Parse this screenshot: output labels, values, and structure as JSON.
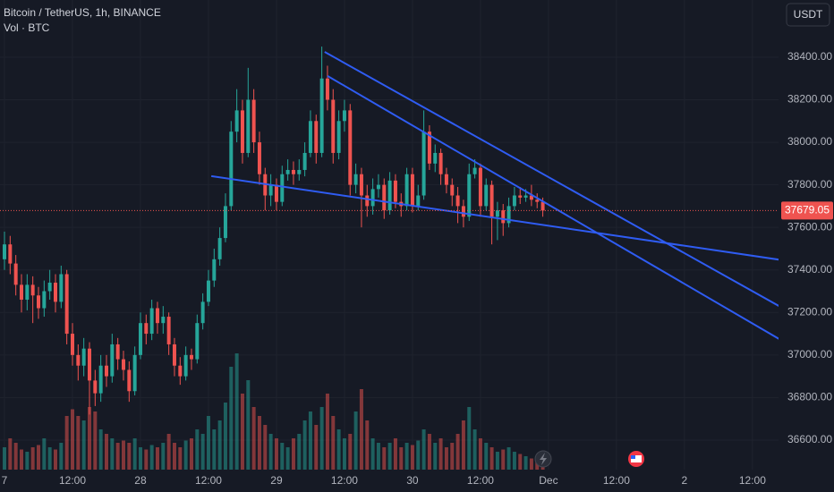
{
  "chart_data": {
    "type": "candlestick",
    "title": "Bitcoin / TetherUS, 1h, BINANCE",
    "subtitle": "Vol · BTC",
    "currency_button": "USDT",
    "up_color": "#26a69a",
    "down_color": "#ef5350",
    "line_color": "#2f5cf2",
    "grid": true,
    "xlim": [
      -0.79,
      136.6
    ],
    "ylim": [
      36461,
      38669
    ],
    "volume_ylim": [
      0,
      4000
    ],
    "xticks": [
      {
        "value": 0,
        "label": "7"
      },
      {
        "value": 12,
        "label": "12:00"
      },
      {
        "value": 24,
        "label": "28"
      },
      {
        "value": 36,
        "label": "12:00"
      },
      {
        "value": 48,
        "label": "29"
      },
      {
        "value": 60,
        "label": "12:00"
      },
      {
        "value": 72,
        "label": "30"
      },
      {
        "value": 84,
        "label": "12:00"
      },
      {
        "value": 96,
        "label": "Dec"
      },
      {
        "value": 108,
        "label": "12:00"
      },
      {
        "value": 120,
        "label": "2"
      },
      {
        "value": 132,
        "label": "12:00"
      }
    ],
    "yticks": [
      {
        "value": 38400,
        "label": "38400.00"
      },
      {
        "value": 38200,
        "label": "38200.00"
      },
      {
        "value": 38000,
        "label": "38000.00"
      },
      {
        "value": 37800,
        "label": "37800.00"
      },
      {
        "value": 37600,
        "label": "37600.00"
      },
      {
        "value": 37400,
        "label": "37400.00"
      },
      {
        "value": 37200,
        "label": "37200.00"
      },
      {
        "value": 37000,
        "label": "37000.00"
      },
      {
        "value": 36800,
        "label": "36800.00"
      },
      {
        "value": 36600,
        "label": "36600.00"
      }
    ],
    "x": [
      0,
      1,
      2,
      3,
      4,
      5,
      6,
      7,
      8,
      9,
      10,
      11,
      12,
      13,
      14,
      15,
      16,
      17,
      18,
      19,
      20,
      21,
      22,
      23,
      24,
      25,
      26,
      27,
      28,
      29,
      30,
      31,
      32,
      33,
      34,
      35,
      36,
      37,
      38,
      39,
      40,
      41,
      42,
      43,
      44,
      45,
      46,
      47,
      48,
      49,
      50,
      51,
      52,
      53,
      54,
      55,
      56,
      57,
      58,
      59,
      60,
      61,
      62,
      63,
      64,
      65,
      66,
      67,
      68,
      69,
      70,
      71,
      72,
      73,
      74,
      75,
      76,
      77,
      78,
      79,
      80,
      81,
      82,
      83,
      84,
      85,
      86,
      87,
      88,
      89,
      90,
      91,
      92,
      93,
      94,
      95
    ],
    "open": [
      37450,
      37520,
      37430,
      37330,
      37260,
      37330,
      37280,
      37220,
      37300,
      37340,
      37250,
      37380,
      37100,
      37000,
      36950,
      37030,
      36880,
      36820,
      36950,
      36900,
      37050,
      36980,
      36930,
      36830,
      37000,
      37150,
      37100,
      37220,
      37150,
      37180,
      37050,
      36950,
      36900,
      37000,
      36980,
      37150,
      37250,
      37350,
      37450,
      37550,
      37700,
      38050,
      38150,
      37950,
      38200,
      38000,
      37850,
      37750,
      37800,
      37720,
      37850,
      37870,
      37850,
      37870,
      37950,
      38100,
      37950,
      38300,
      38200,
      37950,
      38100,
      38150,
      37800,
      37850,
      37750,
      37700,
      37780,
      37800,
      37680,
      37820,
      37720,
      37700,
      37850,
      37700,
      37750,
      38050,
      37900,
      37950,
      37850,
      37800,
      37750,
      37700,
      37650,
      37850,
      37880,
      37700,
      37800,
      37650,
      37680,
      37620,
      37700,
      37750,
      37740,
      37750,
      37730,
      37720
    ],
    "high": [
      37580,
      37560,
      37470,
      37380,
      37380,
      37370,
      37320,
      37350,
      37400,
      37380,
      37420,
      37400,
      37150,
      37050,
      37080,
      37060,
      36930,
      37000,
      37000,
      37100,
      37080,
      37020,
      36970,
      37040,
      37200,
      37190,
      37260,
      37250,
      37230,
      37200,
      37080,
      36990,
      37040,
      37030,
      37190,
      37290,
      37400,
      37500,
      37600,
      37760,
      38100,
      38250,
      38200,
      38350,
      38250,
      38050,
      37880,
      37850,
      37830,
      37890,
      37920,
      37910,
      37920,
      38000,
      38150,
      38130,
      38450,
      38360,
      38250,
      38150,
      38200,
      38180,
      37900,
      37880,
      37800,
      37830,
      37850,
      37830,
      37860,
      37850,
      37760,
      37880,
      37880,
      37800,
      38150,
      38080,
      37990,
      37970,
      37880,
      37830,
      37790,
      37730,
      37900,
      37920,
      37900,
      37830,
      37820,
      37720,
      37710,
      37740,
      37790,
      37790,
      37780,
      37800,
      37760,
      37740
    ],
    "low": [
      37400,
      37380,
      37280,
      37200,
      37210,
      37150,
      37170,
      37180,
      37260,
      37200,
      37220,
      37050,
      36950,
      36880,
      36900,
      36720,
      36760,
      36780,
      36850,
      36870,
      36930,
      36880,
      36780,
      36810,
      36980,
      37050,
      37070,
      37100,
      37100,
      37000,
      36900,
      36860,
      36880,
      36930,
      36960,
      37120,
      37230,
      37320,
      37420,
      37530,
      37680,
      38000,
      37900,
      37930,
      37950,
      37800,
      37680,
      37700,
      37680,
      37700,
      37820,
      37800,
      37820,
      37840,
      37930,
      37900,
      37930,
      38150,
      37900,
      37920,
      38050,
      37750,
      37760,
      37600,
      37650,
      37660,
      37740,
      37640,
      37660,
      37690,
      37650,
      37680,
      37670,
      37680,
      37730,
      37870,
      37860,
      37800,
      37760,
      37700,
      37620,
      37600,
      37630,
      37830,
      37650,
      37680,
      37520,
      37540,
      37560,
      37600,
      37680,
      37710,
      37720,
      37700,
      37690,
      37650
    ],
    "close": [
      37520,
      37430,
      37330,
      37260,
      37330,
      37280,
      37220,
      37300,
      37340,
      37250,
      37380,
      37100,
      37000,
      36950,
      37030,
      36880,
      36820,
      36950,
      36900,
      37050,
      36980,
      36930,
      36830,
      37000,
      37150,
      37100,
      37220,
      37150,
      37180,
      37050,
      36950,
      36900,
      37000,
      36980,
      37150,
      37250,
      37350,
      37450,
      37550,
      37700,
      38050,
      38150,
      37950,
      38200,
      38000,
      37850,
      37750,
      37800,
      37720,
      37850,
      37870,
      37850,
      37870,
      37950,
      38100,
      37950,
      38300,
      38200,
      37950,
      38100,
      38150,
      37800,
      37850,
      37750,
      37700,
      37780,
      37800,
      37680,
      37820,
      37720,
      37700,
      37850,
      37700,
      37750,
      38050,
      37900,
      37950,
      37850,
      37800,
      37750,
      37700,
      37650,
      37850,
      37880,
      37700,
      37800,
      37650,
      37680,
      37620,
      37700,
      37750,
      37740,
      37750,
      37730,
      37720,
      37679.05
    ],
    "volume": [
      500,
      700,
      600,
      450,
      400,
      500,
      550,
      700,
      500,
      450,
      600,
      1200,
      1350,
      1200,
      1100,
      1400,
      1300,
      900,
      800,
      700,
      600,
      650,
      600,
      700,
      500,
      450,
      550,
      500,
      600,
      800,
      600,
      500,
      650,
      700,
      900,
      800,
      1200,
      900,
      1100,
      1500,
      2300,
      2600,
      1700,
      2000,
      1400,
      1200,
      1000,
      800,
      700,
      600,
      500,
      700,
      800,
      1100,
      1300,
      1000,
      1400,
      1700,
      1200,
      900,
      700,
      800,
      1300,
      1800,
      1100,
      700,
      600,
      500,
      600,
      700,
      500,
      600,
      550,
      650,
      900,
      800,
      600,
      700,
      500,
      600,
      800,
      1100,
      1400,
      900,
      700,
      600,
      500,
      400,
      450,
      500,
      400,
      350,
      300,
      250,
      200,
      100
    ],
    "trendlines": [
      {
        "x": [
          36.5,
          137.5
        ],
        "y": [
          37841,
          37445
        ]
      },
      {
        "x": [
          56.5,
          137.5
        ],
        "y": [
          38425,
          37218
        ]
      },
      {
        "x": [
          57,
          137.5
        ],
        "y": [
          38312,
          37063
        ]
      }
    ]
  }
}
